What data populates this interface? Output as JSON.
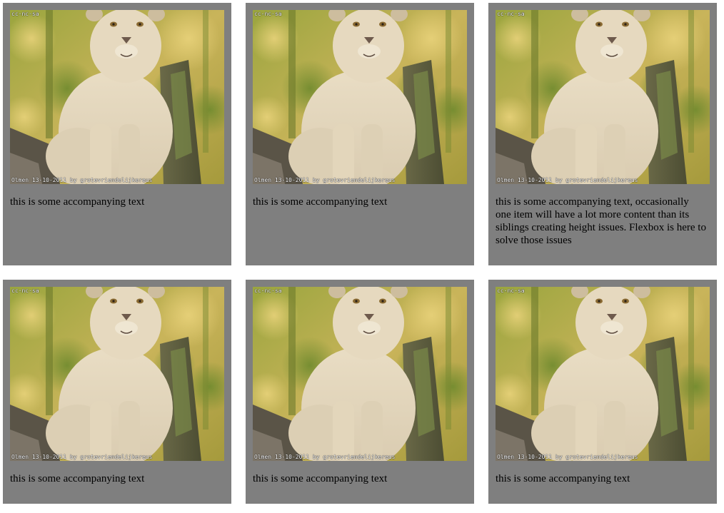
{
  "cards": [
    {
      "license_label": "cc-nc-sa",
      "photo_credit": "Olmen 13-10-2011 by grotevriendelijkereus",
      "caption": "this is some accompanying text"
    },
    {
      "license_label": "cc-nc-sa",
      "photo_credit": "Olmen 13-10-2011 by grotevriendelijkereus",
      "caption": "this is some accompanying text"
    },
    {
      "license_label": "cc-nc-sa",
      "photo_credit": "Olmen 13-10-2011 by grotevriendelijkereus",
      "caption": "this is some accompanying text, occasionally one item will have a lot more content than its siblings creating height issues. Flexbox is here to solve those issues"
    },
    {
      "license_label": "cc-nc-sa",
      "photo_credit": "Olmen 13-10-2011 by grotevriendelijkereus",
      "caption": "this is some accompanying text"
    },
    {
      "license_label": "cc-nc-sa",
      "photo_credit": "Olmen 13-10-2011 by grotevriendelijkereus",
      "caption": "this is some accompanying text"
    },
    {
      "license_label": "cc-nc-sa",
      "photo_credit": "Olmen 13-10-2011 by grotevriendelijkereus",
      "caption": "this is some accompanying text"
    }
  ],
  "colors": {
    "card_background": "#7f7f7f",
    "caption_text": "#000000"
  },
  "image_subject": "white-lion-cub-photo"
}
